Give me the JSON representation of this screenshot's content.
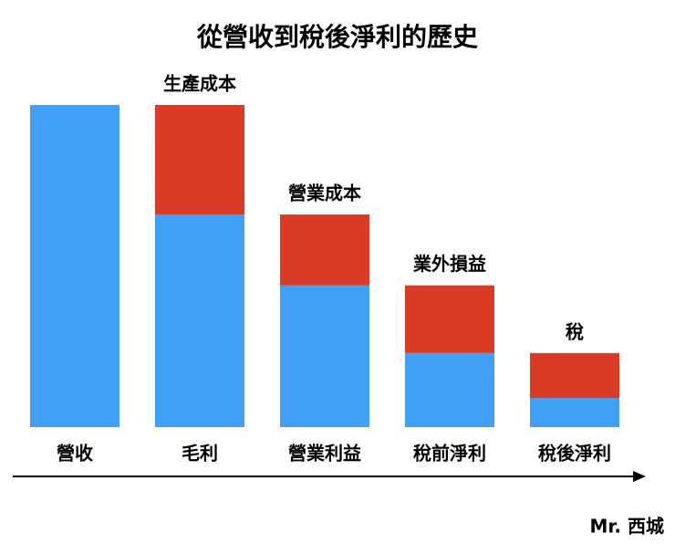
{
  "chart_data": {
    "type": "stacked_bar",
    "title": "從營收到稅後淨利的歷史",
    "categories": [
      "營收",
      "毛利",
      "營業利益",
      "稅前淨利",
      "稅後淨利"
    ],
    "series": [
      {
        "color": "#3fa0f5",
        "values": [
          100,
          66,
          44,
          23,
          9
        ]
      },
      {
        "color": "#d93b26",
        "values": [
          null,
          34,
          22,
          21,
          14
        ],
        "labels": [
          null,
          "生產成本",
          "營業成本",
          "業外損益",
          "稅"
        ]
      }
    ],
    "ylim": [
      0,
      100
    ],
    "footnote": "Mr. 西城"
  }
}
